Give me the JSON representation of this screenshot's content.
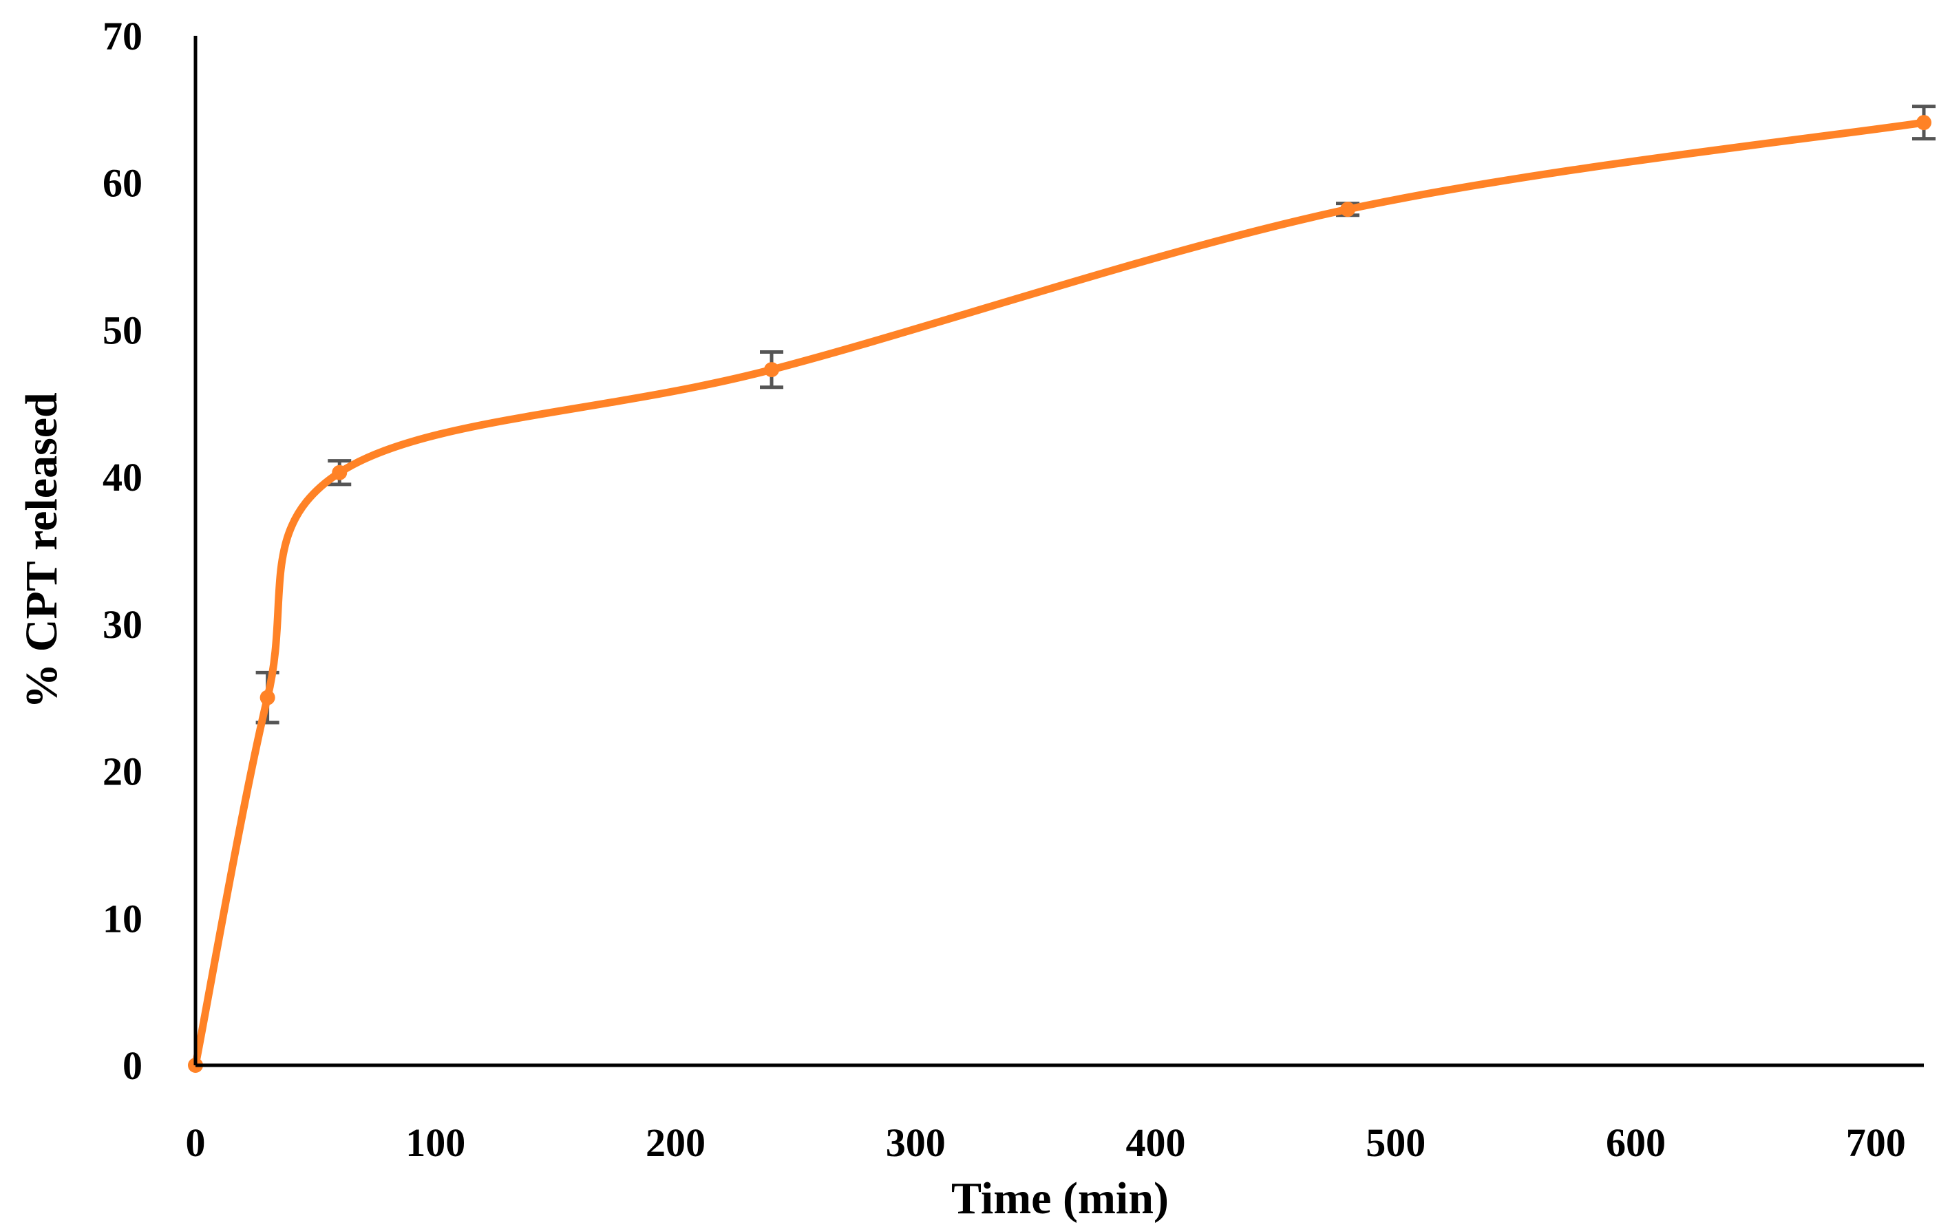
{
  "chart_data": {
    "type": "line",
    "title": "",
    "xlabel": "Time (min)",
    "ylabel": "% CPT released",
    "xlim": [
      0,
      720
    ],
    "ylim": [
      0,
      70
    ],
    "xticks": [
      0,
      100,
      200,
      300,
      400,
      500,
      600,
      700
    ],
    "xtick_labels": [
      "0",
      "100",
      "200",
      "300",
      "400",
      "500",
      "600",
      "700"
    ],
    "yticks": [
      0,
      10,
      20,
      30,
      40,
      50,
      60,
      70
    ],
    "ytick_labels": [
      "0",
      "10",
      "20",
      "30",
      "40",
      "50",
      "60",
      "70"
    ],
    "grid": false,
    "legend": "none",
    "smooth": true,
    "series": [
      {
        "x": [
          0,
          30,
          60,
          240,
          480,
          720
        ],
        "y": [
          0,
          25,
          40.3,
          47.3,
          58.2,
          64.1
        ],
        "error": [
          0,
          1.7,
          0.8,
          1.2,
          0.4,
          1.1
        ]
      }
    ],
    "colors": {
      "line": "#FF8226",
      "marker": "#FF8226",
      "error_bar": "#555555",
      "axis": "#000000"
    }
  }
}
